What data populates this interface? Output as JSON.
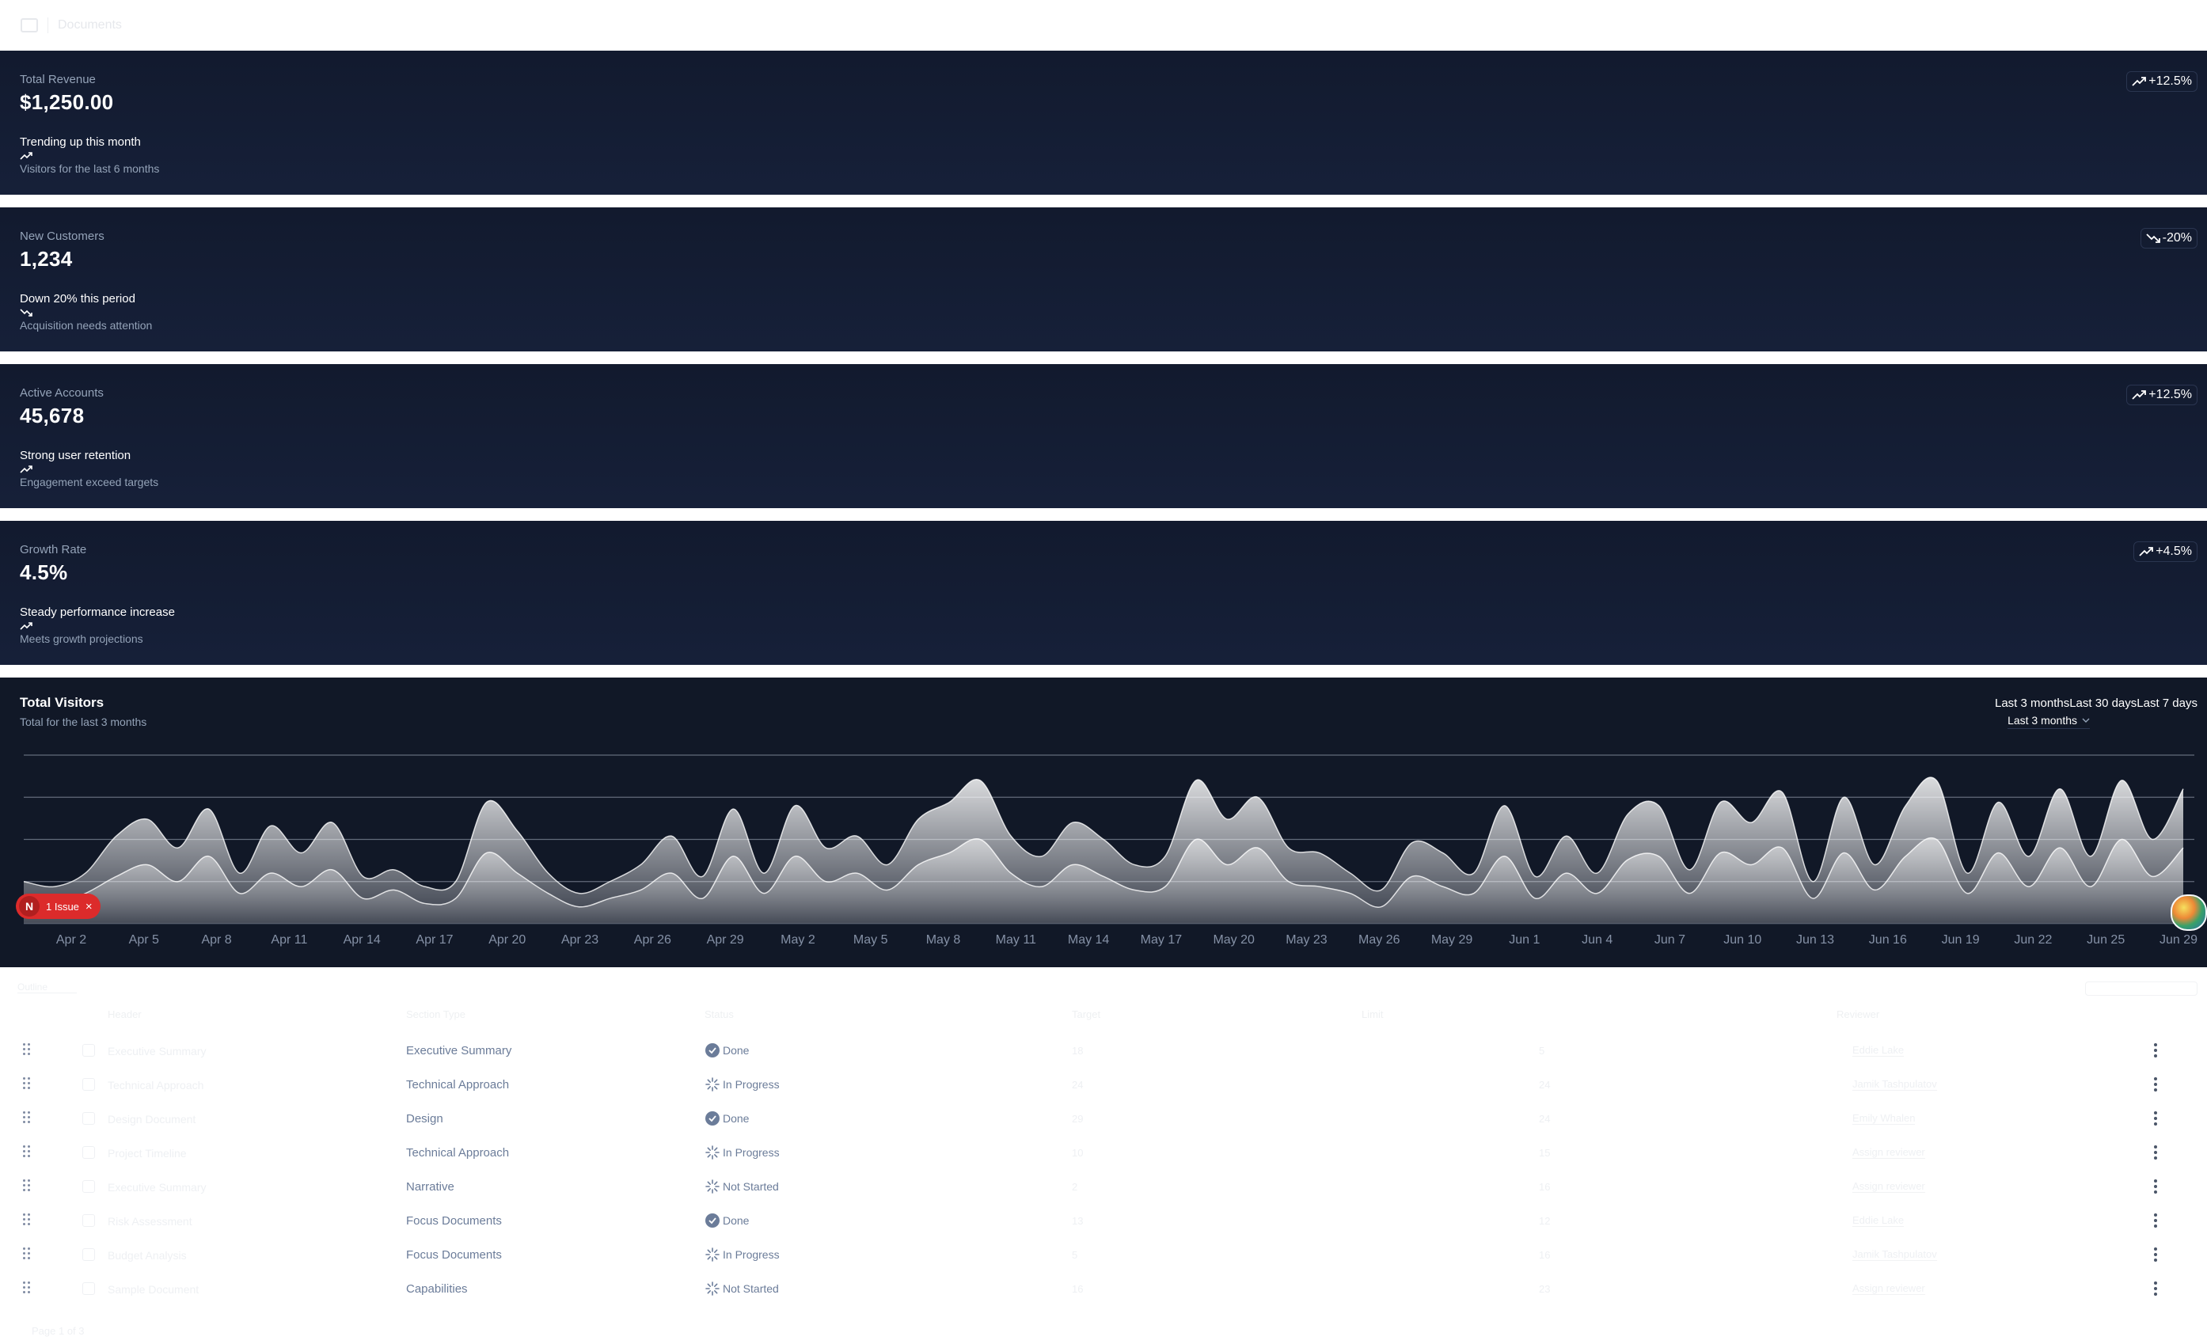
{
  "topbar": {
    "title": "Documents"
  },
  "cards": [
    {
      "description": "Total Revenue",
      "value": "$1,250.00",
      "badge": "+12.5%",
      "badge_dir": "up",
      "trend": "Trending up this month",
      "trend_dir": "up",
      "footer": "Visitors for the last 6 months"
    },
    {
      "description": "New Customers",
      "value": "1,234",
      "badge": "-20%",
      "badge_dir": "down",
      "trend": "Down 20% this period",
      "trend_dir": "down",
      "footer": "Acquisition needs attention"
    },
    {
      "description": "Active Accounts",
      "value": "45,678",
      "badge": "+12.5%",
      "badge_dir": "up",
      "trend": "Strong user retention",
      "trend_dir": "up",
      "footer": "Engagement exceed targets"
    },
    {
      "description": "Growth Rate",
      "value": "4.5%",
      "badge": "+4.5%",
      "badge_dir": "up",
      "trend": "Steady performance increase",
      "trend_dir": "up",
      "footer": "Meets growth projections"
    }
  ],
  "chart": {
    "title": "Total Visitors",
    "description": "Total for the last 3 months",
    "toggle": [
      "Last 3 months",
      "Last 30 days",
      "Last 7 days"
    ],
    "select_value": "Last 3 months"
  },
  "chart_data": {
    "type": "area",
    "title": "Total Visitors",
    "x_tick_labels": [
      "Apr 2",
      "Apr 5",
      "Apr 8",
      "Apr 11",
      "Apr 14",
      "Apr 17",
      "Apr 20",
      "Apr 23",
      "Apr 26",
      "Apr 29",
      "May 2",
      "May 5",
      "May 8",
      "May 11",
      "May 14",
      "May 17",
      "May 20",
      "May 23",
      "May 26",
      "May 29",
      "Jun 1",
      "Jun 4",
      "Jun 7",
      "Jun 10",
      "Jun 13",
      "Jun 16",
      "Jun 19",
      "Jun 22",
      "Jun 25",
      "Jun 29"
    ],
    "grid": true,
    "x_range": [
      "Apr 1",
      "Jun 30"
    ],
    "series": [
      {
        "values": [
          0.25,
          0.22,
          0.3,
          0.52,
          0.62,
          0.45,
          0.68,
          0.3,
          0.58,
          0.42,
          0.6,
          0.28,
          0.32,
          0.22,
          0.25,
          0.72,
          0.55,
          0.3,
          0.18,
          0.25,
          0.35,
          0.52,
          0.28,
          0.68,
          0.3,
          0.7,
          0.45,
          0.52,
          0.35,
          0.62,
          0.72,
          0.85,
          0.52,
          0.4,
          0.6,
          0.5,
          0.35,
          0.4,
          0.85,
          0.62,
          0.75,
          0.45,
          0.42,
          0.3,
          0.2,
          0.48,
          0.42,
          0.3,
          0.7,
          0.28,
          0.52,
          0.3,
          0.65,
          0.7,
          0.32,
          0.72,
          0.6,
          0.78,
          0.25,
          0.75,
          0.35,
          0.7,
          0.85,
          0.3,
          0.72,
          0.4,
          0.8,
          0.4,
          0.85,
          0.5,
          0.8
        ]
      },
      {
        "values": [
          0.15,
          0.12,
          0.18,
          0.28,
          0.35,
          0.25,
          0.4,
          0.18,
          0.3,
          0.22,
          0.32,
          0.15,
          0.2,
          0.12,
          0.15,
          0.42,
          0.3,
          0.18,
          0.1,
          0.15,
          0.2,
          0.3,
          0.15,
          0.4,
          0.18,
          0.4,
          0.25,
          0.3,
          0.2,
          0.35,
          0.42,
          0.5,
          0.3,
          0.22,
          0.35,
          0.28,
          0.2,
          0.22,
          0.5,
          0.35,
          0.45,
          0.25,
          0.22,
          0.18,
          0.1,
          0.28,
          0.22,
          0.18,
          0.4,
          0.15,
          0.3,
          0.18,
          0.38,
          0.4,
          0.18,
          0.42,
          0.35,
          0.45,
          0.15,
          0.42,
          0.2,
          0.4,
          0.5,
          0.18,
          0.42,
          0.22,
          0.45,
          0.22,
          0.5,
          0.28,
          0.45
        ]
      }
    ]
  },
  "overlay": {
    "issue_badge": "1 Issue",
    "issue_logo": "N",
    "issue_close": "×"
  },
  "table": {
    "tab_faint": "Outline",
    "headers": [
      "Header",
      "Section Type",
      "Status",
      "Target",
      "Limit",
      "Reviewer"
    ],
    "rows": [
      {
        "header": "Executive Summary",
        "type": "Executive Summary",
        "status": "Done",
        "state": "done",
        "target": "18",
        "limit": "5",
        "reviewer": "Eddie Lake"
      },
      {
        "header": "Technical Approach",
        "type": "Technical Approach",
        "status": "In Progress",
        "state": "progress",
        "target": "24",
        "limit": "24",
        "reviewer": "Jamik Tashpulatov"
      },
      {
        "header": "Design Document",
        "type": "Design",
        "status": "Done",
        "state": "done",
        "target": "29",
        "limit": "24",
        "reviewer": "Emily Whalen"
      },
      {
        "header": "Project Timeline",
        "type": "Technical Approach",
        "status": "In Progress",
        "state": "progress",
        "target": "10",
        "limit": "15",
        "reviewer": "Assign reviewer"
      },
      {
        "header": "Executive Summary",
        "type": "Narrative",
        "status": "Not Started",
        "state": "notstarted",
        "target": "2",
        "limit": "16",
        "reviewer": "Assign reviewer"
      },
      {
        "header": "Risk Assessment",
        "type": "Focus Documents",
        "status": "Done",
        "state": "done",
        "target": "13",
        "limit": "12",
        "reviewer": "Eddie Lake"
      },
      {
        "header": "Budget Analysis",
        "type": "Focus Documents",
        "status": "In Progress",
        "state": "progress",
        "target": "5",
        "limit": "16",
        "reviewer": "Jamik Tashpulatov"
      },
      {
        "header": "Sample Document",
        "type": "Capabilities",
        "status": "Not Started",
        "state": "notstarted",
        "target": "16",
        "limit": "23",
        "reviewer": "Assign reviewer"
      }
    ],
    "pagination": "Page 1 of 3"
  },
  "colors": {
    "card_bg": "#121a2e",
    "page_bg": "#ffffff",
    "accent_red": "#dc2b2b",
    "muted": "#94a3b8"
  }
}
